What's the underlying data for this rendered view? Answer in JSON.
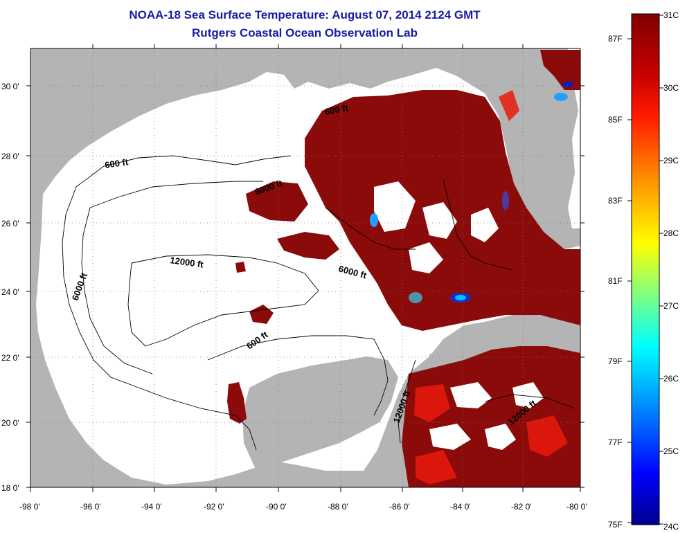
{
  "title": {
    "line1": "NOAA-18 Sea Surface Temperature:  August 07, 2014 2124 GMT",
    "line2": "Rutgers Coastal Ocean Observation Lab"
  },
  "axes": {
    "lat_labels": [
      "18 0'",
      "20 0'",
      "22 0'",
      "24 0'",
      "26 0'",
      "28 0'",
      "30 0'"
    ],
    "lon_labels": [
      "-98 0'",
      "-96 0'",
      "-94 0'",
      "-92 0'",
      "-90 0'",
      "-88 0'",
      "-86 0'",
      "-84 0'",
      "-82 0'",
      "-80 0'"
    ]
  },
  "contour_labels": [
    "600 ft",
    "6000 ft",
    "12000 ft",
    "6000 ft",
    "600 ft",
    "6000 ft",
    "12000 ft",
    "600 ft",
    "12000 ft"
  ],
  "colorbar": {
    "celsius_labels": [
      "31C",
      "30C",
      "29C",
      "28C",
      "27C",
      "26C",
      "25C",
      "24C"
    ],
    "fahrenheit_labels": [
      "87F",
      "85F",
      "83F",
      "81F",
      "79F",
      "77F",
      "75F"
    ],
    "colors": [
      "#7f0000",
      "#ff0000",
      "#ffa500",
      "#ffff00",
      "#00ffff",
      "#0000ff",
      "#00008f"
    ]
  },
  "colors": {
    "land": "#b4b4b4",
    "sst_hot": "#8b0a0a",
    "title": "#1a1aa6"
  }
}
